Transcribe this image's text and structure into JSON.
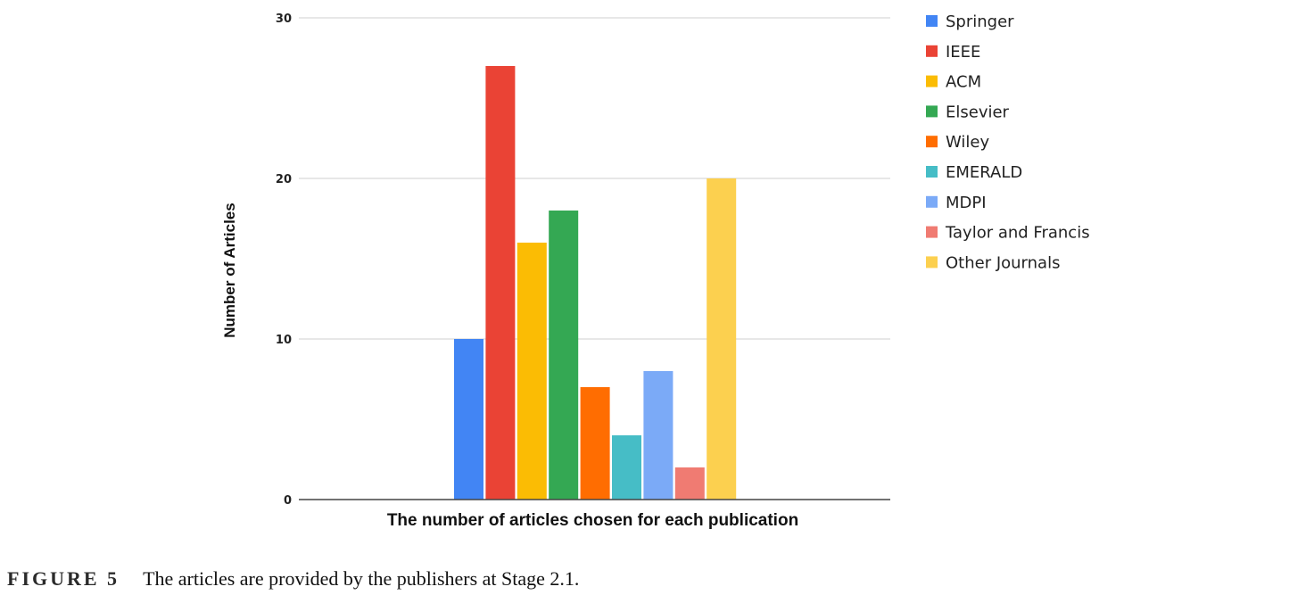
{
  "chart_data": {
    "type": "bar",
    "xlabel": "The number of articles chosen for each publication",
    "ylabel": "Number of Articles",
    "ylim": [
      0,
      30
    ],
    "yticks": [
      0,
      10,
      20,
      30
    ],
    "grid": true,
    "legend_position": "right",
    "series": [
      {
        "name": "Springer",
        "value": 10,
        "color": "#4285F4"
      },
      {
        "name": "IEEE",
        "value": 27,
        "color": "#EA4335"
      },
      {
        "name": "ACM",
        "value": 16,
        "color": "#FBBC04"
      },
      {
        "name": "Elsevier",
        "value": 18,
        "color": "#34A853"
      },
      {
        "name": "Wiley",
        "value": 7,
        "color": "#FF6D01"
      },
      {
        "name": "EMERALD",
        "value": 4,
        "color": "#46BDC6"
      },
      {
        "name": "MDPI",
        "value": 8,
        "color": "#7BAAF7"
      },
      {
        "name": "Taylor and Francis",
        "value": 2,
        "color": "#F07B72"
      },
      {
        "name": "Other Journals",
        "value": 20,
        "color": "#FCD04F"
      }
    ]
  },
  "caption": {
    "label": "FIGURE 5",
    "text": "The articles are provided by the publishers at Stage 2.1."
  }
}
